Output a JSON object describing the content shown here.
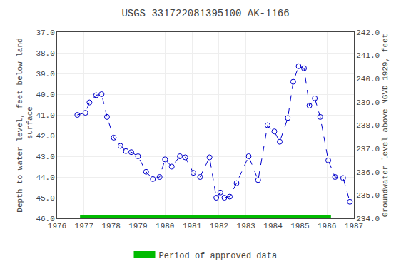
{
  "chart_data": {
    "type": "line",
    "title": "USGS 331722081395100 AK-1166",
    "ylabel": "Depth to water level, feet below land\n surface",
    "y2label": "Groundwater level above NGVD 1929, feet",
    "x": [
      1976.75,
      1977.05,
      1977.2,
      1977.45,
      1977.65,
      1977.85,
      1978.1,
      1978.35,
      1978.55,
      1978.75,
      1979.0,
      1979.3,
      1979.55,
      1979.8,
      1980.0,
      1980.25,
      1980.55,
      1980.75,
      1981.05,
      1981.3,
      1981.65,
      1981.9,
      1982.05,
      1982.2,
      1982.4,
      1982.65,
      1983.1,
      1983.45,
      1983.8,
      1984.05,
      1984.25,
      1984.55,
      1984.75,
      1984.95,
      1985.15,
      1985.35,
      1985.55,
      1985.75,
      1986.05,
      1986.3,
      1986.6,
      1986.85
    ],
    "series": [
      {
        "color": "#0000CC",
        "line_style": "dashed",
        "marker": "open_circle",
        "values": [
          41.0,
          40.9,
          40.4,
          40.05,
          40.0,
          41.1,
          42.1,
          42.5,
          42.75,
          42.8,
          43.0,
          43.75,
          44.1,
          44.0,
          43.15,
          43.5,
          43.0,
          43.05,
          43.8,
          44.0,
          43.05,
          45.0,
          44.75,
          45.0,
          44.95,
          44.3,
          43.0,
          44.15,
          41.5,
          41.8,
          42.3,
          41.15,
          39.4,
          38.65,
          38.75,
          40.55,
          40.2,
          41.1,
          43.2,
          44.0,
          44.05,
          45.2
        ]
      }
    ],
    "approved_period": {
      "name": "Period of approved data",
      "color": "#00BB00",
      "x_range": [
        1976.85,
        1986.15
      ]
    },
    "xlim": [
      1976,
      1987
    ],
    "xticks": [
      1976,
      1977,
      1978,
      1979,
      1980,
      1981,
      1982,
      1983,
      1984,
      1985,
      1986,
      1987
    ],
    "ylim": [
      46.0,
      37.0
    ],
    "yticks": [
      {
        "value": 37,
        "label": "37.0"
      },
      {
        "value": 38,
        "label": "38.0"
      },
      {
        "value": 39,
        "label": "39.0"
      },
      {
        "value": 40,
        "label": "40.0"
      },
      {
        "value": 41,
        "label": "41.0"
      },
      {
        "value": 42,
        "label": "42.0"
      },
      {
        "value": 43,
        "label": "43.0"
      },
      {
        "value": 44,
        "label": "44.0"
      },
      {
        "value": 45,
        "label": "45.0"
      },
      {
        "value": 46,
        "label": "46.0"
      }
    ],
    "y2lim": [
      234.0,
      242.0
    ],
    "y2ticks": [
      {
        "value": 242,
        "label": "242.0"
      },
      {
        "value": 241,
        "label": "241.0"
      },
      {
        "value": 240,
        "label": "240.0"
      },
      {
        "value": 239,
        "label": "239.0"
      },
      {
        "value": 238,
        "label": "238.0"
      },
      {
        "value": 237,
        "label": "237.0"
      },
      {
        "value": 236,
        "label": "236.0"
      },
      {
        "value": 235,
        "label": "235.0"
      },
      {
        "value": 234,
        "label": "234.0"
      }
    ],
    "grid": true,
    "legend": "bottom"
  }
}
